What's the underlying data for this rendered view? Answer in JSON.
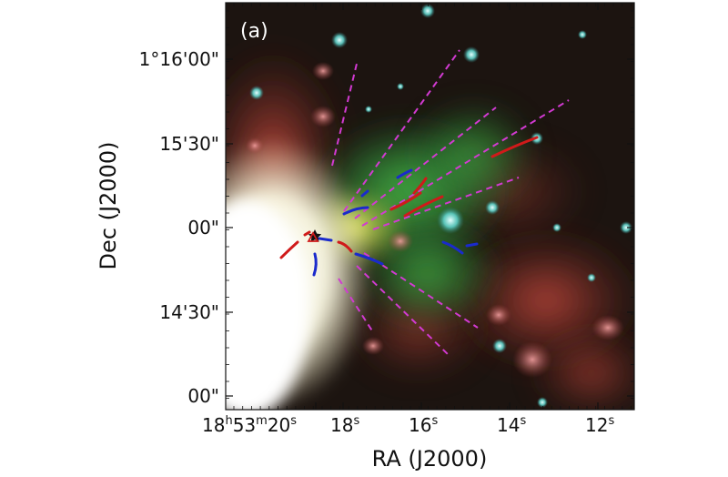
{
  "panel_label": "(a)",
  "x_axis": {
    "label": "RA (J2000)",
    "ticks": [
      {
        "main": "18",
        "sup1": "h",
        "mid1": "53",
        "sup2": "m",
        "mid2": "20",
        "sup3": "s"
      },
      {
        "main": "18",
        "sup3": "s"
      },
      {
        "main": "16",
        "sup3": "s"
      },
      {
        "main": "14",
        "sup3": "s"
      },
      {
        "main": "12",
        "sup3": "s"
      }
    ]
  },
  "y_axis": {
    "label": "Dec (J2000)",
    "ticks": [
      "1°16'00\"",
      "15'30\"",
      "00\"",
      "14'30\"",
      "00\""
    ]
  },
  "image": {
    "description_colors": {
      "background": "#1c1410",
      "red_emission": "#b8423a",
      "green_emission": "#3fb24a",
      "white_core": "#ffffff",
      "yellow": "#e6e23a"
    },
    "line_colors": {
      "magenta_dashed": "#d23ad2",
      "red_outflow": "#d01a1a",
      "blue_outflow": "#1a2acc"
    },
    "markers": [
      "star",
      "triangle"
    ]
  }
}
